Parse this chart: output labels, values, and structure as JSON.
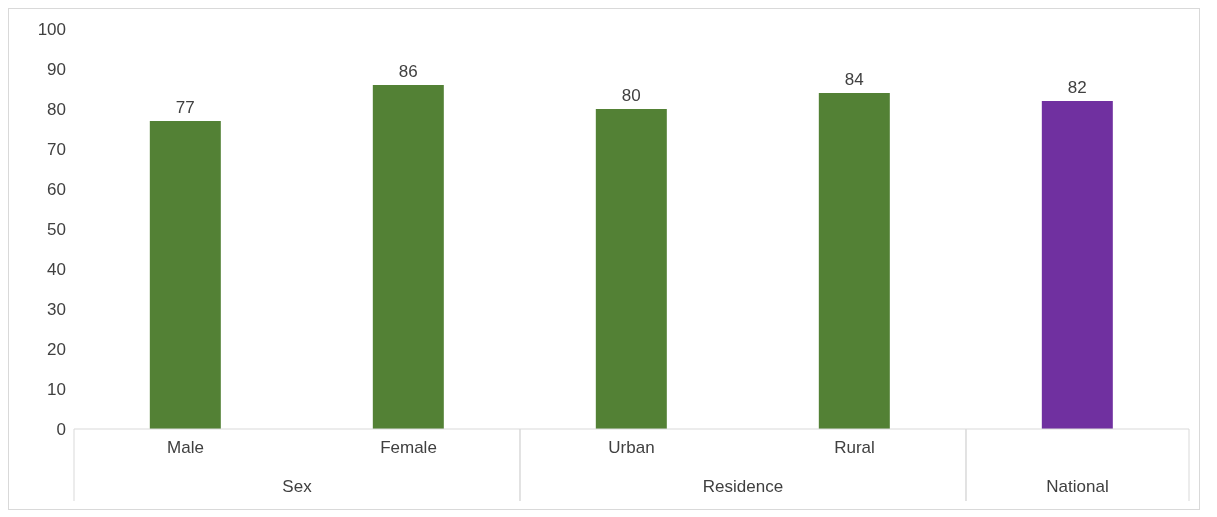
{
  "chart_data": {
    "type": "bar",
    "categories": [
      "Male",
      "Female",
      "Urban",
      "Rural",
      null
    ],
    "values": [
      77,
      86,
      80,
      84,
      82
    ],
    "colors": [
      "#538135",
      "#538135",
      "#538135",
      "#538135",
      "#7030a0"
    ],
    "ylim": [
      0,
      100
    ],
    "yticks": [
      0,
      10,
      20,
      30,
      40,
      50,
      60,
      70,
      80,
      90,
      100
    ],
    "grid": false,
    "data_labels": true,
    "annotations": [
      "Sex",
      "Residence",
      "National"
    ]
  }
}
